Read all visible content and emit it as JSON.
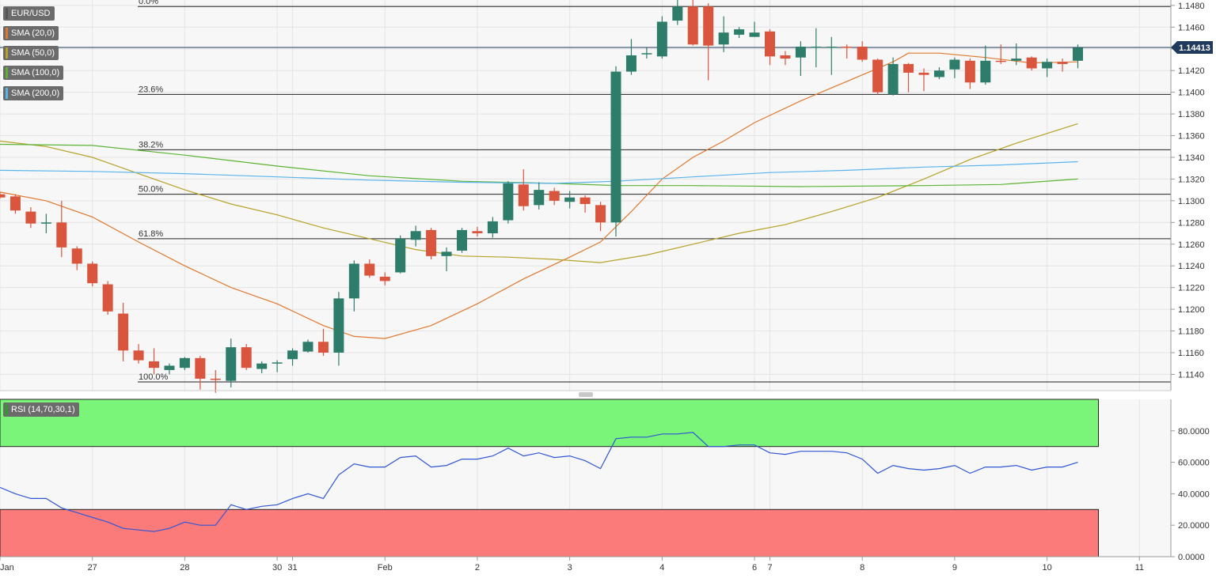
{
  "chart_data": [
    {
      "type": "candlestick",
      "symbol": "EUR/USD",
      "current_price_label": "1.14413",
      "ylim": [
        1.1125,
        1.1485
      ],
      "y_ticks": [
        "1.1140",
        "1.1160",
        "1.1180",
        "1.1200",
        "1.1220",
        "1.1240",
        "1.1260",
        "1.1280",
        "1.1300",
        "1.1320",
        "1.1340",
        "1.1360",
        "1.1380",
        "1.1400",
        "1.1420",
        "1.1440",
        "1.1460",
        "1.1480"
      ],
      "x_ticks": [
        {
          "t": 0,
          "label": "Jan"
        },
        {
          "t": 6,
          "label": "27"
        },
        {
          "t": 12,
          "label": "28"
        },
        {
          "t": 18,
          "label": "30"
        },
        {
          "t": 19,
          "label": "31"
        },
        {
          "t": 25,
          "label": "Feb"
        },
        {
          "t": 31,
          "label": "2"
        },
        {
          "t": 37,
          "label": "3"
        },
        {
          "t": 43,
          "label": "4"
        },
        {
          "t": 49,
          "label": "6"
        },
        {
          "t": 50,
          "label": "7"
        },
        {
          "t": 56,
          "label": "8"
        },
        {
          "t": 62,
          "label": "9"
        },
        {
          "t": 68,
          "label": "10"
        },
        {
          "t": 74,
          "label": "11"
        }
      ],
      "fibonacci_levels": [
        {
          "label": "0.0%",
          "price": 1.1479
        },
        {
          "label": "23.6%",
          "price": 1.1398
        },
        {
          "label": "38.2%",
          "price": 1.1347
        },
        {
          "label": "50.0%",
          "price": 1.1306
        },
        {
          "label": "61.8%",
          "price": 1.1265
        },
        {
          "label": "100.0%",
          "price": 1.1133
        }
      ],
      "current_price_line": 1.14413,
      "legend": [
        {
          "label": "EUR/USD",
          "color": "#555555"
        },
        {
          "label": "SMA (20,0)",
          "color": "#e0782f"
        },
        {
          "label": "SMA (50,0)",
          "color": "#b5a227"
        },
        {
          "label": "SMA (100,0)",
          "color": "#5cb335"
        },
        {
          "label": "SMA (200,0)",
          "color": "#5ab4ec"
        }
      ],
      "candles": [
        {
          "t": 0,
          "o": 1.1306,
          "h": 1.1308,
          "l": 1.1302,
          "c": 1.1303
        },
        {
          "t": 1,
          "o": 1.1304,
          "h": 1.1306,
          "l": 1.1288,
          "c": 1.1291
        },
        {
          "t": 2,
          "o": 1.129,
          "h": 1.1294,
          "l": 1.1275,
          "c": 1.1279
        },
        {
          "t": 3,
          "o": 1.128,
          "h": 1.1288,
          "l": 1.127,
          "c": 1.128
        },
        {
          "t": 4,
          "o": 1.128,
          "h": 1.13,
          "l": 1.1248,
          "c": 1.1257
        },
        {
          "t": 5,
          "o": 1.1256,
          "h": 1.1258,
          "l": 1.1236,
          "c": 1.1242
        },
        {
          "t": 6,
          "o": 1.1242,
          "h": 1.1244,
          "l": 1.1221,
          "c": 1.1224
        },
        {
          "t": 7,
          "o": 1.1223,
          "h": 1.1226,
          "l": 1.1195,
          "c": 1.1198
        },
        {
          "t": 8,
          "o": 1.1196,
          "h": 1.1206,
          "l": 1.1152,
          "c": 1.1162
        },
        {
          "t": 9,
          "o": 1.1162,
          "h": 1.1168,
          "l": 1.115,
          "c": 1.1153
        },
        {
          "t": 10,
          "o": 1.1152,
          "h": 1.1164,
          "l": 1.114,
          "c": 1.1146
        },
        {
          "t": 11,
          "o": 1.1144,
          "h": 1.115,
          "l": 1.114,
          "c": 1.1148
        },
        {
          "t": 12,
          "o": 1.1146,
          "h": 1.1156,
          "l": 1.1144,
          "c": 1.1155
        },
        {
          "t": 13,
          "o": 1.1155,
          "h": 1.1157,
          "l": 1.1126,
          "c": 1.1136
        },
        {
          "t": 14,
          "o": 1.1136,
          "h": 1.1144,
          "l": 1.1123,
          "c": 1.1135
        },
        {
          "t": 15,
          "o": 1.1134,
          "h": 1.1173,
          "l": 1.1128,
          "c": 1.1165
        },
        {
          "t": 16,
          "o": 1.1165,
          "h": 1.1168,
          "l": 1.1144,
          "c": 1.1146
        },
        {
          "t": 17,
          "o": 1.1145,
          "h": 1.1152,
          "l": 1.1141,
          "c": 1.115
        },
        {
          "t": 18,
          "o": 1.115,
          "h": 1.1153,
          "l": 1.1142,
          "c": 1.1151
        },
        {
          "t": 19,
          "o": 1.1154,
          "h": 1.1164,
          "l": 1.1148,
          "c": 1.1162
        },
        {
          "t": 20,
          "o": 1.1161,
          "h": 1.1172,
          "l": 1.116,
          "c": 1.117
        },
        {
          "t": 21,
          "o": 1.117,
          "h": 1.1182,
          "l": 1.1157,
          "c": 1.116
        },
        {
          "t": 22,
          "o": 1.116,
          "h": 1.1216,
          "l": 1.1148,
          "c": 1.121
        },
        {
          "t": 23,
          "o": 1.121,
          "h": 1.1245,
          "l": 1.1198,
          "c": 1.1242
        },
        {
          "t": 24,
          "o": 1.1242,
          "h": 1.1246,
          "l": 1.1229,
          "c": 1.1231
        },
        {
          "t": 25,
          "o": 1.123,
          "h": 1.1234,
          "l": 1.1222,
          "c": 1.1226
        },
        {
          "t": 26,
          "o": 1.1234,
          "h": 1.1268,
          "l": 1.1233,
          "c": 1.1265
        },
        {
          "t": 27,
          "o": 1.1264,
          "h": 1.1277,
          "l": 1.1258,
          "c": 1.1272
        },
        {
          "t": 28,
          "o": 1.1273,
          "h": 1.1275,
          "l": 1.1246,
          "c": 1.1249
        },
        {
          "t": 29,
          "o": 1.1249,
          "h": 1.1257,
          "l": 1.1235,
          "c": 1.1253
        },
        {
          "t": 30,
          "o": 1.1254,
          "h": 1.1275,
          "l": 1.1252,
          "c": 1.1273
        },
        {
          "t": 31,
          "o": 1.1272,
          "h": 1.1276,
          "l": 1.1267,
          "c": 1.127
        },
        {
          "t": 32,
          "o": 1.127,
          "h": 1.1285,
          "l": 1.1266,
          "c": 1.1281
        },
        {
          "t": 33,
          "o": 1.1282,
          "h": 1.1318,
          "l": 1.1279,
          "c": 1.1316
        },
        {
          "t": 34,
          "o": 1.1315,
          "h": 1.1329,
          "l": 1.1291,
          "c": 1.1295
        },
        {
          "t": 35,
          "o": 1.1296,
          "h": 1.1317,
          "l": 1.1292,
          "c": 1.131
        },
        {
          "t": 36,
          "o": 1.1309,
          "h": 1.1312,
          "l": 1.1296,
          "c": 1.13
        },
        {
          "t": 37,
          "o": 1.1299,
          "h": 1.1309,
          "l": 1.1293,
          "c": 1.1303
        },
        {
          "t": 38,
          "o": 1.1303,
          "h": 1.1305,
          "l": 1.1289,
          "c": 1.1297
        },
        {
          "t": 39,
          "o": 1.1296,
          "h": 1.1299,
          "l": 1.1272,
          "c": 1.128
        },
        {
          "t": 40,
          "o": 1.128,
          "h": 1.1424,
          "l": 1.1267,
          "c": 1.1419
        },
        {
          "t": 41,
          "o": 1.1419,
          "h": 1.1449,
          "l": 1.1416,
          "c": 1.1434
        },
        {
          "t": 42,
          "o": 1.1435,
          "h": 1.1441,
          "l": 1.1431,
          "c": 1.1436
        },
        {
          "t": 43,
          "o": 1.1433,
          "h": 1.147,
          "l": 1.1431,
          "c": 1.1465
        },
        {
          "t": 44,
          "o": 1.1466,
          "h": 1.1486,
          "l": 1.1462,
          "c": 1.1479
        },
        {
          "t": 45,
          "o": 1.1479,
          "h": 1.149,
          "l": 1.1443,
          "c": 1.1444
        },
        {
          "t": 46,
          "o": 1.1479,
          "h": 1.1482,
          "l": 1.1411,
          "c": 1.1443
        },
        {
          "t": 47,
          "o": 1.1444,
          "h": 1.147,
          "l": 1.1437,
          "c": 1.1455
        },
        {
          "t": 48,
          "o": 1.1453,
          "h": 1.146,
          "l": 1.145,
          "c": 1.1458
        },
        {
          "t": 49,
          "o": 1.1451,
          "h": 1.1465,
          "l": 1.1451,
          "c": 1.1455
        },
        {
          "t": 50,
          "o": 1.1456,
          "h": 1.1458,
          "l": 1.1425,
          "c": 1.1433
        },
        {
          "t": 51,
          "o": 1.1434,
          "h": 1.1438,
          "l": 1.1425,
          "c": 1.1431
        },
        {
          "t": 52,
          "o": 1.1432,
          "h": 1.1447,
          "l": 1.1415,
          "c": 1.1442
        },
        {
          "t": 53,
          "o": 1.1442,
          "h": 1.1459,
          "l": 1.1423,
          "c": 1.1442
        },
        {
          "t": 54,
          "o": 1.1442,
          "h": 1.1451,
          "l": 1.1416,
          "c": 1.1442
        },
        {
          "t": 55,
          "o": 1.1442,
          "h": 1.1444,
          "l": 1.1431,
          "c": 1.1441
        },
        {
          "t": 56,
          "o": 1.1442,
          "h": 1.1447,
          "l": 1.1428,
          "c": 1.143
        },
        {
          "t": 57,
          "o": 1.143,
          "h": 1.1431,
          "l": 1.1398,
          "c": 1.14
        },
        {
          "t": 58,
          "o": 1.1398,
          "h": 1.1432,
          "l": 1.1397,
          "c": 1.1426
        },
        {
          "t": 59,
          "o": 1.1426,
          "h": 1.1427,
          "l": 1.14,
          "c": 1.1418
        },
        {
          "t": 60,
          "o": 1.1418,
          "h": 1.1422,
          "l": 1.1401,
          "c": 1.1416
        },
        {
          "t": 61,
          "o": 1.1414,
          "h": 1.1423,
          "l": 1.1412,
          "c": 1.142
        },
        {
          "t": 62,
          "o": 1.1421,
          "h": 1.1432,
          "l": 1.1413,
          "c": 1.143
        },
        {
          "t": 63,
          "o": 1.1429,
          "h": 1.1431,
          "l": 1.1403,
          "c": 1.1409
        },
        {
          "t": 64,
          "o": 1.1409,
          "h": 1.1443,
          "l": 1.1407,
          "c": 1.1429
        },
        {
          "t": 65,
          "o": 1.1429,
          "h": 1.1444,
          "l": 1.1426,
          "c": 1.1428
        },
        {
          "t": 66,
          "o": 1.1429,
          "h": 1.1445,
          "l": 1.1425,
          "c": 1.1431
        },
        {
          "t": 67,
          "o": 1.1432,
          "h": 1.1433,
          "l": 1.142,
          "c": 1.1422
        },
        {
          "t": 68,
          "o": 1.1422,
          "h": 1.1431,
          "l": 1.1414,
          "c": 1.1428
        },
        {
          "t": 69,
          "o": 1.1428,
          "h": 1.1431,
          "l": 1.1419,
          "c": 1.1426
        },
        {
          "t": 70,
          "o": 1.1429,
          "h": 1.1444,
          "l": 1.1422,
          "c": 1.1441
        }
      ],
      "sma": [
        {
          "name": "SMA (20,0)",
          "color": "#e0782f",
          "points": [
            [
              0,
              1.1308
            ],
            [
              3,
              1.13
            ],
            [
              6,
              1.1285
            ],
            [
              9,
              1.1262
            ],
            [
              12,
              1.124
            ],
            [
              15,
              1.122
            ],
            [
              18,
              1.1205
            ],
            [
              21,
              1.1185
            ],
            [
              23,
              1.1175
            ],
            [
              25,
              1.1173
            ],
            [
              28,
              1.1185
            ],
            [
              31,
              1.1205
            ],
            [
              34,
              1.1228
            ],
            [
              37,
              1.1248
            ],
            [
              39,
              1.1262
            ],
            [
              41,
              1.129
            ],
            [
              43,
              1.132
            ],
            [
              45,
              1.134
            ],
            [
              47,
              1.1355
            ],
            [
              49,
              1.1372
            ],
            [
              52,
              1.1392
            ],
            [
              55,
              1.141
            ],
            [
              58,
              1.1428
            ],
            [
              59,
              1.1436
            ],
            [
              61,
              1.1436
            ],
            [
              64,
              1.1432
            ],
            [
              67,
              1.1427
            ],
            [
              70,
              1.1428
            ]
          ]
        },
        {
          "name": "SMA (50,0)",
          "color": "#b5a227",
          "points": [
            [
              0,
              1.1355
            ],
            [
              3,
              1.135
            ],
            [
              6,
              1.134
            ],
            [
              9,
              1.1325
            ],
            [
              12,
              1.131
            ],
            [
              15,
              1.1297
            ],
            [
              18,
              1.1287
            ],
            [
              21,
              1.1275
            ],
            [
              24,
              1.1265
            ],
            [
              27,
              1.1255
            ],
            [
              30,
              1.1249
            ],
            [
              33,
              1.1248
            ],
            [
              36,
              1.1246
            ],
            [
              39,
              1.1243
            ],
            [
              42,
              1.125
            ],
            [
              45,
              1.126
            ],
            [
              48,
              1.127
            ],
            [
              51,
              1.1278
            ],
            [
              54,
              1.129
            ],
            [
              57,
              1.1303
            ],
            [
              60,
              1.132
            ],
            [
              63,
              1.1338
            ],
            [
              66,
              1.1353
            ],
            [
              70,
              1.1371
            ]
          ]
        },
        {
          "name": "SMA (100,0)",
          "color": "#5cb335",
          "points": [
            [
              0,
              1.1352
            ],
            [
              6,
              1.1351
            ],
            [
              12,
              1.1342
            ],
            [
              18,
              1.1332
            ],
            [
              24,
              1.1323
            ],
            [
              30,
              1.1318
            ],
            [
              36,
              1.1316
            ],
            [
              40,
              1.1314
            ],
            [
              45,
              1.1314
            ],
            [
              52,
              1.1313
            ],
            [
              60,
              1.1314
            ],
            [
              65,
              1.1315
            ],
            [
              70,
              1.132
            ]
          ]
        },
        {
          "name": "SMA (200,0)",
          "color": "#5ab4ec",
          "points": [
            [
              0,
              1.1328
            ],
            [
              6,
              1.1327
            ],
            [
              12,
              1.1325
            ],
            [
              18,
              1.1322
            ],
            [
              24,
              1.1319
            ],
            [
              30,
              1.1317
            ],
            [
              36,
              1.1316
            ],
            [
              40,
              1.1318
            ],
            [
              45,
              1.1322
            ],
            [
              50,
              1.1326
            ],
            [
              55,
              1.1328
            ],
            [
              60,
              1.1331
            ],
            [
              65,
              1.1333
            ],
            [
              70,
              1.1336
            ]
          ]
        }
      ]
    },
    {
      "type": "line",
      "name": "RSI (14,70,30,1)",
      "ylim": [
        0,
        100
      ],
      "y_ticks": [
        "80.0000",
        "60.0000",
        "40.0000",
        "20.0000",
        "0.0000"
      ],
      "overbought": 70,
      "oversold": 30,
      "values": [
        44,
        40,
        37,
        37,
        31,
        28,
        25,
        22,
        18,
        17,
        16,
        18,
        22,
        20,
        20,
        33,
        30,
        32,
        33,
        37,
        40,
        37,
        52,
        59,
        57,
        57,
        63,
        64,
        57,
        58,
        62,
        62,
        64,
        69,
        64,
        66,
        63,
        64,
        61,
        56,
        75,
        76,
        76,
        78,
        78,
        79,
        70,
        70,
        71,
        71,
        66,
        65,
        67,
        67,
        67,
        66,
        62,
        53,
        58,
        56,
        55,
        56,
        58,
        53,
        57,
        57,
        58,
        55,
        57,
        57,
        60
      ]
    }
  ]
}
